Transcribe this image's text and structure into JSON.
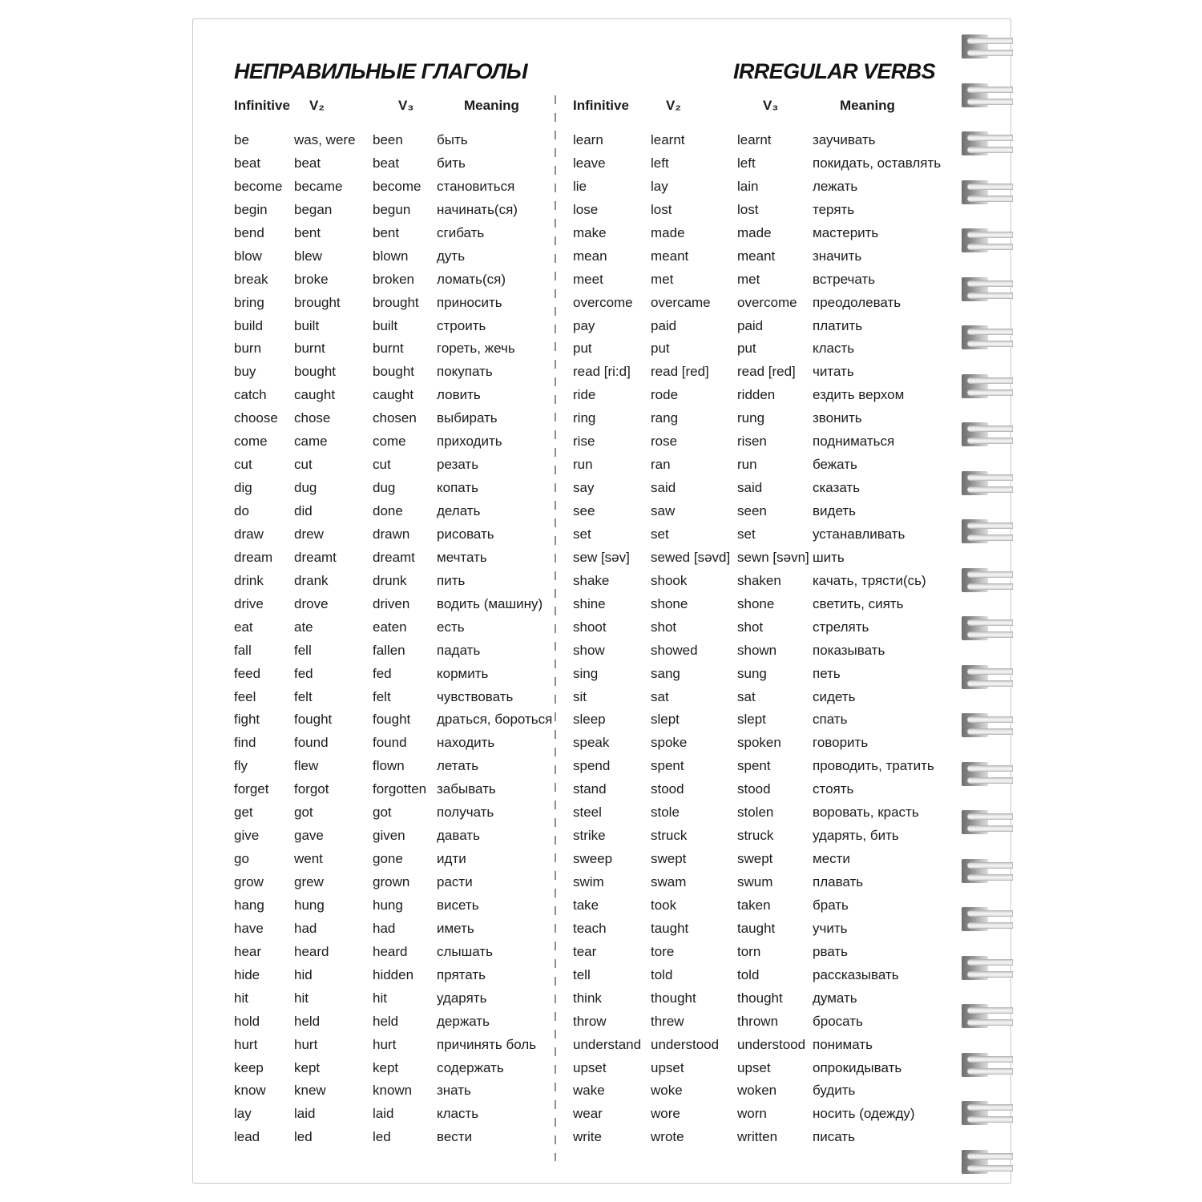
{
  "header": {
    "title_ru": "НЕПРАВИЛЬНЫЕ ГЛАГОЛЫ",
    "title_en": "IRREGULAR VERBS"
  },
  "columns": {
    "infinitive": "Infinitive",
    "v2": "V₂",
    "v3": "V₃",
    "meaning": "Meaning"
  },
  "binding": {
    "ring_count": 24
  },
  "tables": {
    "left": {
      "rows": [
        [
          "be",
          "was, were",
          "been",
          "быть"
        ],
        [
          "beat",
          "beat",
          "beat",
          "бить"
        ],
        [
          "become",
          "became",
          "become",
          "становиться"
        ],
        [
          "begin",
          "began",
          "begun",
          "начинать(ся)"
        ],
        [
          "bend",
          "bent",
          "bent",
          "сгибать"
        ],
        [
          "blow",
          "blew",
          "blown",
          "дуть"
        ],
        [
          "break",
          "broke",
          "broken",
          "ломать(ся)"
        ],
        [
          "bring",
          "brought",
          "brought",
          "приносить"
        ],
        [
          "build",
          "built",
          "built",
          "строить"
        ],
        [
          "burn",
          "burnt",
          "burnt",
          "гореть, жечь"
        ],
        [
          "buy",
          "bought",
          "bought",
          "покупать"
        ],
        [
          "catch",
          "caught",
          "caught",
          "ловить"
        ],
        [
          "choose",
          "chose",
          "chosen",
          "выбирать"
        ],
        [
          "come",
          "came",
          "come",
          "приходить"
        ],
        [
          "cut",
          "cut",
          "cut",
          "резать"
        ],
        [
          "dig",
          "dug",
          "dug",
          "копать"
        ],
        [
          "do",
          "did",
          "done",
          "делать"
        ],
        [
          "draw",
          "drew",
          "drawn",
          "рисовать"
        ],
        [
          "dream",
          "dreamt",
          "dreamt",
          "мечтать"
        ],
        [
          "drink",
          "drank",
          "drunk",
          "пить"
        ],
        [
          "drive",
          "drove",
          "driven",
          "водить (машину)"
        ],
        [
          "eat",
          "ate",
          "eaten",
          "есть"
        ],
        [
          "fall",
          "fell",
          "fallen",
          "падать"
        ],
        [
          "feed",
          "fed",
          "fed",
          "кормить"
        ],
        [
          "feel",
          "felt",
          "felt",
          "чувствовать"
        ],
        [
          "fight",
          "fought",
          "fought",
          "драться, бороться"
        ],
        [
          "find",
          "found",
          "found",
          "находить"
        ],
        [
          "fly",
          "flew",
          "flown",
          "летать"
        ],
        [
          "forget",
          "forgot",
          "forgotten",
          "забывать"
        ],
        [
          "get",
          "got",
          "got",
          "получать"
        ],
        [
          "give",
          "gave",
          "given",
          "давать"
        ],
        [
          "go",
          "went",
          "gone",
          "идти"
        ],
        [
          "grow",
          "grew",
          "grown",
          "расти"
        ],
        [
          "hang",
          "hung",
          "hung",
          "висеть"
        ],
        [
          "have",
          "had",
          "had",
          "иметь"
        ],
        [
          "hear",
          "heard",
          "heard",
          "слышать"
        ],
        [
          "hide",
          "hid",
          "hidden",
          "прятать"
        ],
        [
          "hit",
          "hit",
          "hit",
          "ударять"
        ],
        [
          "hold",
          "held",
          "held",
          "держать"
        ],
        [
          "hurt",
          "hurt",
          "hurt",
          "причинять боль"
        ],
        [
          "keep",
          "kept",
          "kept",
          "содержать"
        ],
        [
          "know",
          "knew",
          "known",
          "знать"
        ],
        [
          "lay",
          "laid",
          "laid",
          "класть"
        ],
        [
          "lead",
          "led",
          "led",
          "вести"
        ]
      ]
    },
    "right": {
      "rows": [
        [
          "learn",
          "learnt",
          "learnt",
          "заучивать"
        ],
        [
          "leave",
          "left",
          "left",
          "покидать, оставлять"
        ],
        [
          "lie",
          "lay",
          "lain",
          "лежать"
        ],
        [
          "lose",
          "lost",
          "lost",
          "терять"
        ],
        [
          "make",
          "made",
          "made",
          "мастерить"
        ],
        [
          "mean",
          "meant",
          "meant",
          "значить"
        ],
        [
          "meet",
          "met",
          "met",
          "встречать"
        ],
        [
          "overcome",
          "overcame",
          "overcome",
          "преодолевать"
        ],
        [
          "pay",
          "paid",
          "paid",
          "платить"
        ],
        [
          "put",
          "put",
          "put",
          "класть"
        ],
        [
          "read [ri:d]",
          "read [red]",
          "read [red]",
          "читать"
        ],
        [
          "ride",
          "rode",
          "ridden",
          "ездить верхом"
        ],
        [
          "ring",
          "rang",
          "rung",
          "звонить"
        ],
        [
          "rise",
          "rose",
          "risen",
          "подниматься"
        ],
        [
          "run",
          "ran",
          "run",
          "бежать"
        ],
        [
          "say",
          "said",
          "said",
          "сказать"
        ],
        [
          "see",
          "saw",
          "seen",
          "видеть"
        ],
        [
          "set",
          "set",
          "set",
          "устанавливать"
        ],
        [
          "sew [səv]",
          "sewed [səvd]",
          "sewn [səvn]",
          "шить"
        ],
        [
          "shake",
          "shook",
          "shaken",
          "качать, трясти(сь)"
        ],
        [
          "shine",
          "shone",
          "shone",
          "светить, сиять"
        ],
        [
          "shoot",
          "shot",
          "shot",
          "стрелять"
        ],
        [
          "show",
          "showed",
          "shown",
          "показывать"
        ],
        [
          "sing",
          "sang",
          "sung",
          "петь"
        ],
        [
          "sit",
          "sat",
          "sat",
          "сидеть"
        ],
        [
          "sleep",
          "slept",
          "slept",
          "спать"
        ],
        [
          "speak",
          "spoke",
          "spoken",
          "говорить"
        ],
        [
          "spend",
          "spent",
          "spent",
          "проводить, тратить"
        ],
        [
          "stand",
          "stood",
          "stood",
          "стоять"
        ],
        [
          "steel",
          "stole",
          "stolen",
          "воровать, красть"
        ],
        [
          "strike",
          "struck",
          "struck",
          "ударять, бить"
        ],
        [
          "sweep",
          "swept",
          "swept",
          "мести"
        ],
        [
          "swim",
          "swam",
          "swum",
          "плавать"
        ],
        [
          "take",
          "took",
          "taken",
          "брать"
        ],
        [
          "teach",
          "taught",
          "taught",
          "учить"
        ],
        [
          "tear",
          "tore",
          "torn",
          "рвать"
        ],
        [
          "tell",
          "told",
          "told",
          "рассказывать"
        ],
        [
          "think",
          "thought",
          "thought",
          "думать"
        ],
        [
          "throw",
          "threw",
          "thrown",
          "бросать"
        ],
        [
          "understand",
          "understood",
          "understood",
          "понимать"
        ],
        [
          "upset",
          "upset",
          "upset",
          "опрокидывать"
        ],
        [
          "wake",
          "woke",
          "woken",
          "будить"
        ],
        [
          "wear",
          "wore",
          "worn",
          "носить (одежду)"
        ],
        [
          "write",
          "wrote",
          "written",
          "писать"
        ]
      ]
    }
  }
}
